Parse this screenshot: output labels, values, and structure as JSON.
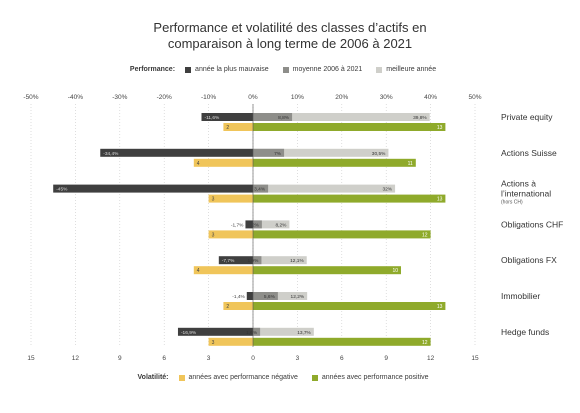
{
  "title_lines": [
    "Performance et volatilité des classes d’actifs en",
    "comparaison à long terme de 2006 à 2021"
  ],
  "colors": {
    "worst": "#3f3f3f",
    "average": "#8e8e8a",
    "best": "#cfcfca",
    "negative": "#f0c55a",
    "positive": "#8faa2b"
  },
  "performance_legend": {
    "title": "Performance:",
    "items": [
      "année la plus mauvaise",
      "moyenne 2006 à 2021",
      "meilleure année"
    ]
  },
  "volatility_legend": {
    "title": "Volatilité:",
    "items": [
      "années avec performance négative",
      "années avec performance positive"
    ]
  },
  "chart_data": {
    "type": "bar",
    "orientation": "horizontal",
    "categories": [
      "Private equity",
      "Actions Suisse",
      "Actions à l’international",
      "Obligations CHF",
      "Obligations FX",
      "Immobilier",
      "Hedge funds"
    ],
    "category_labels": [
      [
        "Private equity"
      ],
      [
        "Actions Suisse"
      ],
      [
        "Actions à",
        "l’international"
      ],
      [
        "Obligations CHF"
      ],
      [
        "Obligations FX"
      ],
      [
        "Immobilier"
      ],
      [
        "Hedge funds"
      ]
    ],
    "category_notes": [
      "",
      "",
      "(hors CH)",
      "",
      "",
      "",
      ""
    ],
    "performance": {
      "unit": "%",
      "xlim": [
        -50,
        50
      ],
      "ticks": [
        -50,
        -40,
        -30,
        -20,
        -10,
        0,
        10,
        20,
        30,
        40,
        50
      ],
      "tick_labels": [
        "-50%",
        "-40%",
        "-30%",
        "-20%",
        "-10%",
        "0%",
        "10%",
        "20%",
        "30%",
        "40%",
        "50%"
      ],
      "series": [
        {
          "name": "année la plus mauvaise",
          "values": [
            -11.6,
            -34.4,
            -45,
            -1.7,
            -7.7,
            -1.4,
            -16.9
          ],
          "labels": [
            "-11,6%",
            "-34,4%",
            "-45%",
            "-1,7%",
            "-7,7%",
            "-1,4%",
            "-16,9%"
          ]
        },
        {
          "name": "moyenne 2006 à 2021",
          "values": [
            8.8,
            7,
            3.4,
            2,
            1.9,
            5.6,
            1.6
          ],
          "labels": [
            "8,8%",
            "7%",
            "3,4%",
            "2%",
            "1,9%",
            "5,6%",
            "1,6%"
          ]
        },
        {
          "name": "meilleure année",
          "values": [
            39.8,
            30.5,
            32,
            8.2,
            12.1,
            12.2,
            13.7
          ],
          "labels": [
            "39,8%",
            "30,5%",
            "32%",
            "8,2%",
            "12,1%",
            "12,2%",
            "13,7%"
          ]
        }
      ]
    },
    "volatility": {
      "xlim": [
        -15,
        15
      ],
      "ticks": [
        -15,
        -12,
        -9,
        -6,
        -3,
        0,
        3,
        6,
        9,
        12,
        15
      ],
      "tick_labels": [
        "15",
        "12",
        "9",
        "6",
        "3",
        "0",
        "3",
        "6",
        "9",
        "12",
        "15"
      ],
      "series": [
        {
          "name": "années avec performance négative",
          "values": [
            2,
            4,
            3,
            3,
            4,
            2,
            3
          ]
        },
        {
          "name": "années avec performance positive",
          "values": [
            13,
            11,
            13,
            12,
            10,
            13,
            12
          ]
        }
      ]
    }
  }
}
